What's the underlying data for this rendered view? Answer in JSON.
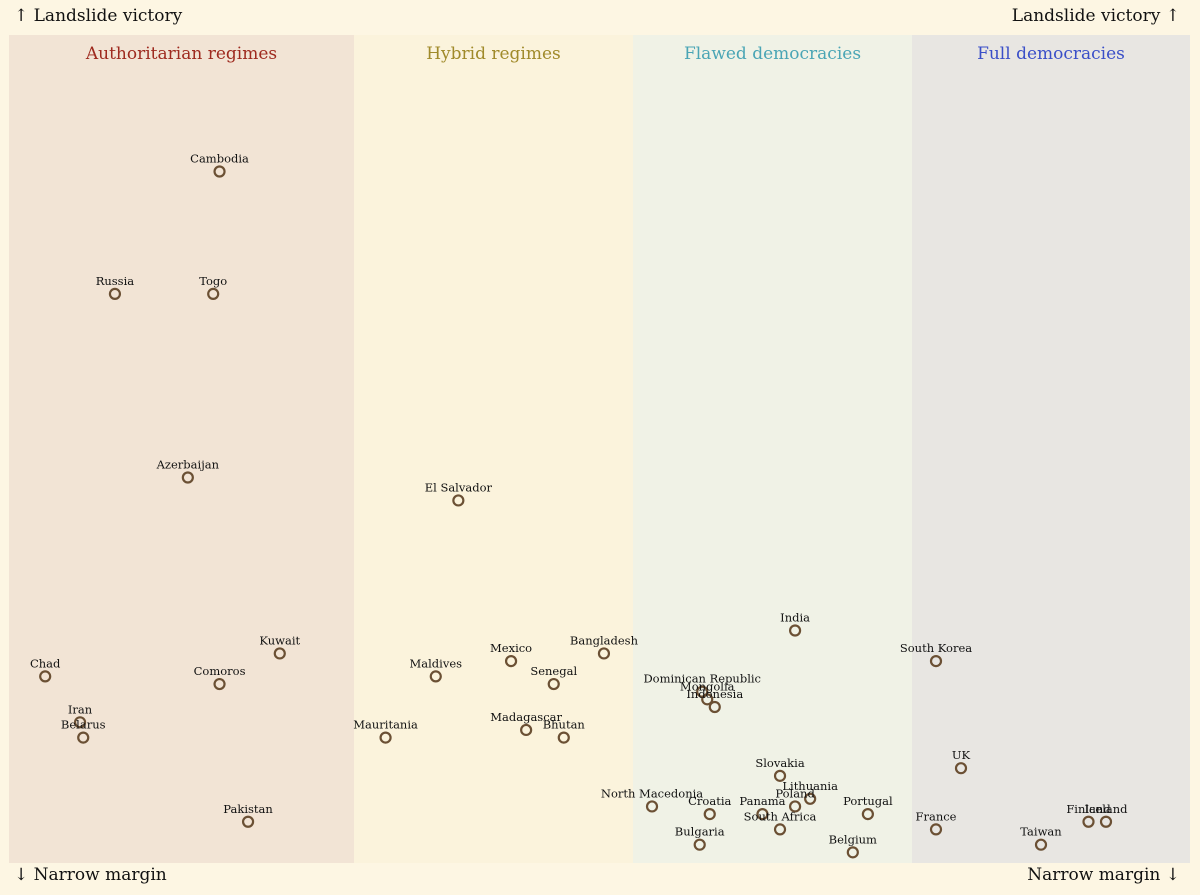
{
  "corners": {
    "top_left": "↑ Landslide victory",
    "top_right": "Landslide victory ↑",
    "bottom_left": "↓ Narrow margin",
    "bottom_right": "Narrow margin ↓"
  },
  "chart_data": {
    "type": "scatter",
    "x_axis": "regime type (categorical bands, position within band approximate)",
    "y_axis": "margin of victory (Narrow margin to Landslide victory)",
    "categories": [
      {
        "name": "Authoritarian regimes",
        "color": "#9e2a1f",
        "fill": "#f2e4d5"
      },
      {
        "name": "Hybrid regimes",
        "color": "#a08a2a",
        "fill": "#fbf3dc"
      },
      {
        "name": "Flawed democracies",
        "color": "#4aa5b5",
        "fill": "#f0f2e6"
      },
      {
        "name": "Full democracies",
        "color": "#3a4fc8",
        "fill": "#e8e6e2"
      }
    ],
    "points": [
      {
        "name": "Cambodia",
        "category": "Authoritarian regimes",
        "x": 0.62,
        "y": 0.9
      },
      {
        "name": "Russia",
        "category": "Authoritarian regimes",
        "x": 0.29,
        "y": 0.74
      },
      {
        "name": "Togo",
        "category": "Authoritarian regimes",
        "x": 0.6,
        "y": 0.74
      },
      {
        "name": "Azerbaijan",
        "category": "Authoritarian regimes",
        "x": 0.52,
        "y": 0.5
      },
      {
        "name": "Kuwait",
        "category": "Authoritarian regimes",
        "x": 0.81,
        "y": 0.27
      },
      {
        "name": "Chad",
        "category": "Authoritarian regimes",
        "x": 0.07,
        "y": 0.24
      },
      {
        "name": "Comoros",
        "category": "Authoritarian regimes",
        "x": 0.62,
        "y": 0.23
      },
      {
        "name": "Iran",
        "category": "Authoritarian regimes",
        "x": 0.18,
        "y": 0.18
      },
      {
        "name": "Belarus",
        "category": "Authoritarian regimes",
        "x": 0.19,
        "y": 0.16
      },
      {
        "name": "Pakistan",
        "category": "Authoritarian regimes",
        "x": 0.71,
        "y": 0.05
      },
      {
        "name": "El Salvador",
        "category": "Hybrid regimes",
        "x": 0.36,
        "y": 0.47
      },
      {
        "name": "Bangladesh",
        "category": "Hybrid regimes",
        "x": 0.94,
        "y": 0.27
      },
      {
        "name": "Mexico",
        "category": "Hybrid regimes",
        "x": 0.57,
        "y": 0.26
      },
      {
        "name": "Maldives",
        "category": "Hybrid regimes",
        "x": 0.27,
        "y": 0.24
      },
      {
        "name": "Senegal",
        "category": "Hybrid regimes",
        "x": 0.74,
        "y": 0.23
      },
      {
        "name": "Madagascar",
        "category": "Hybrid regimes",
        "x": 0.63,
        "y": 0.17
      },
      {
        "name": "Mauritania",
        "category": "Hybrid regimes",
        "x": 0.07,
        "y": 0.16
      },
      {
        "name": "Bhutan",
        "category": "Hybrid regimes",
        "x": 0.78,
        "y": 0.16
      },
      {
        "name": "India",
        "category": "Flawed democracies",
        "x": 0.59,
        "y": 0.3
      },
      {
        "name": "Dominican Republic",
        "category": "Flawed democracies",
        "x": 0.22,
        "y": 0.22
      },
      {
        "name": "Mongolia",
        "category": "Flawed democracies",
        "x": 0.24,
        "y": 0.21
      },
      {
        "name": "Indonesia",
        "category": "Flawed democracies",
        "x": 0.27,
        "y": 0.2
      },
      {
        "name": "Slovakia",
        "category": "Flawed democracies",
        "x": 0.53,
        "y": 0.11
      },
      {
        "name": "Lithuania",
        "category": "Flawed democracies",
        "x": 0.65,
        "y": 0.08
      },
      {
        "name": "North Macedonia",
        "category": "Flawed democracies",
        "x": 0.02,
        "y": 0.07
      },
      {
        "name": "Poland",
        "category": "Flawed democracies",
        "x": 0.59,
        "y": 0.07
      },
      {
        "name": "Croatia",
        "category": "Flawed democracies",
        "x": 0.25,
        "y": 0.06
      },
      {
        "name": "Panama",
        "category": "Flawed democracies",
        "x": 0.46,
        "y": 0.06
      },
      {
        "name": "Portugal",
        "category": "Flawed democracies",
        "x": 0.88,
        "y": 0.06
      },
      {
        "name": "South Africa",
        "category": "Flawed democracies",
        "x": 0.53,
        "y": 0.04
      },
      {
        "name": "Bulgaria",
        "category": "Flawed democracies",
        "x": 0.21,
        "y": 0.02
      },
      {
        "name": "Belgium",
        "category": "Flawed democracies",
        "x": 0.82,
        "y": 0.01
      },
      {
        "name": "South Korea",
        "category": "Full democracies",
        "x": 0.04,
        "y": 0.26
      },
      {
        "name": "UK",
        "category": "Full democracies",
        "x": 0.14,
        "y": 0.12
      },
      {
        "name": "France",
        "category": "Full democracies",
        "x": 0.04,
        "y": 0.04
      },
      {
        "name": "Iceland",
        "category": "Full democracies",
        "x": 0.72,
        "y": 0.05
      },
      {
        "name": "Finland",
        "category": "Full democracies",
        "x": 0.65,
        "y": 0.05
      },
      {
        "name": "Taiwan",
        "category": "Full democracies",
        "x": 0.46,
        "y": 0.02
      }
    ]
  }
}
